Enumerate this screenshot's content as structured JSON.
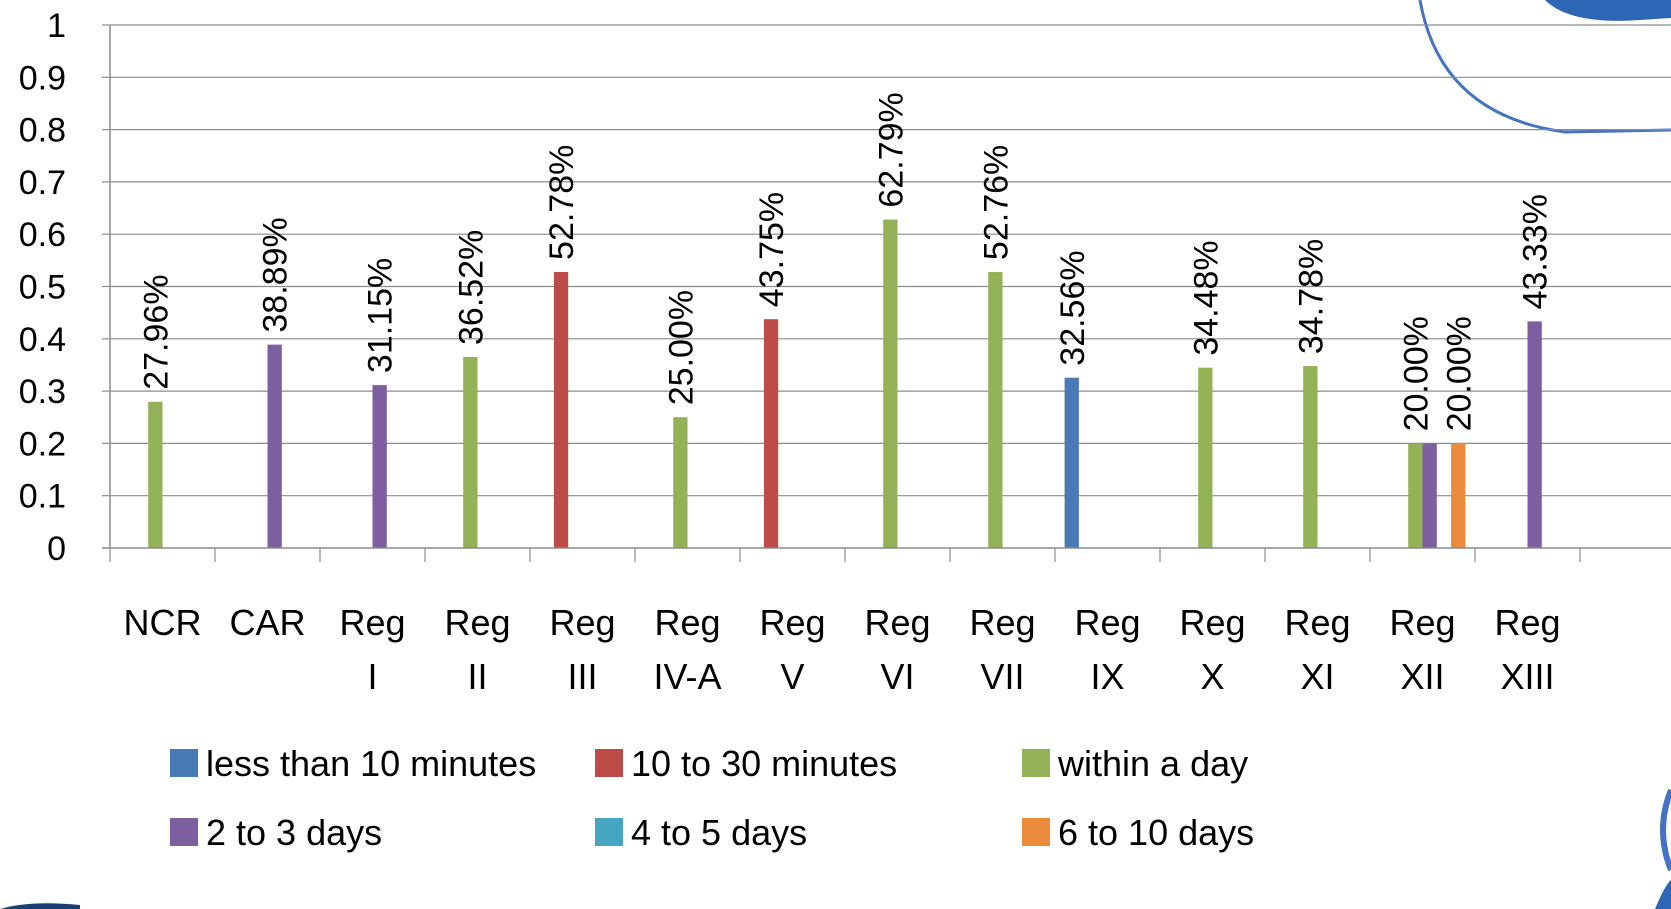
{
  "chart_data": {
    "type": "bar",
    "title": "",
    "xlabel": "",
    "ylabel": "",
    "ylim": [
      0,
      1
    ],
    "yticks": [
      "0",
      "0.1",
      "0.2",
      "0.3",
      "0.4",
      "0.5",
      "0.6",
      "0.7",
      "0.8",
      "0.9",
      "1"
    ],
    "grid": true,
    "legend_position": "bottom",
    "categories": [
      [
        "NCR"
      ],
      [
        "CAR"
      ],
      [
        "Reg",
        "I"
      ],
      [
        "Reg",
        "II"
      ],
      [
        "Reg",
        "III"
      ],
      [
        "Reg",
        "IV-A"
      ],
      [
        "Reg",
        "V"
      ],
      [
        "Reg",
        "VI"
      ],
      [
        "Reg",
        "VII"
      ],
      [
        "Reg",
        "IX"
      ],
      [
        "Reg",
        "X"
      ],
      [
        "Reg",
        "XI"
      ],
      [
        "Reg",
        "XII"
      ],
      [
        "Reg",
        "XIII"
      ]
    ],
    "series": [
      {
        "name": "less than 10 minutes",
        "color": "#4a7ab5",
        "values": [
          null,
          null,
          null,
          null,
          null,
          null,
          null,
          null,
          null,
          0.3256,
          null,
          null,
          null,
          null
        ],
        "labels": [
          null,
          null,
          null,
          null,
          null,
          null,
          null,
          null,
          null,
          "32.56%",
          null,
          null,
          null,
          null
        ]
      },
      {
        "name": "10 to 30 minutes",
        "color": "#bd4b48",
        "values": [
          null,
          null,
          null,
          null,
          0.5278,
          null,
          0.4375,
          null,
          null,
          null,
          null,
          null,
          null,
          null
        ],
        "labels": [
          null,
          null,
          null,
          null,
          "52.78%",
          null,
          "43.75%",
          null,
          null,
          null,
          null,
          null,
          null,
          null
        ]
      },
      {
        "name": "within a day",
        "color": "#93b157",
        "values": [
          0.2796,
          null,
          null,
          0.3652,
          null,
          0.25,
          null,
          0.6279,
          0.5276,
          null,
          0.3448,
          0.3478,
          0.2,
          null
        ],
        "labels": [
          "27.96%",
          null,
          null,
          "36.52%",
          null,
          "25.00%",
          null,
          "62.79%",
          "52.76%",
          null,
          "34.48%",
          "34.78%",
          "20.00%",
          null
        ]
      },
      {
        "name": "2 to 3 days",
        "color": "#7d5fa0",
        "values": [
          null,
          0.3889,
          0.3115,
          null,
          null,
          null,
          null,
          null,
          null,
          null,
          null,
          null,
          0.2,
          0.4333
        ],
        "labels": [
          null,
          "38.89%",
          "31.15%",
          null,
          null,
          null,
          null,
          null,
          null,
          null,
          null,
          null,
          null,
          "43.33%"
        ]
      },
      {
        "name": "4 to 5 days",
        "color": "#46a5c1",
        "values": [
          null,
          null,
          null,
          null,
          null,
          null,
          null,
          null,
          null,
          null,
          null,
          null,
          null,
          null
        ],
        "labels": [
          null,
          null,
          null,
          null,
          null,
          null,
          null,
          null,
          null,
          null,
          null,
          null,
          null,
          null
        ]
      },
      {
        "name": "6 to 10 days",
        "color": "#ea8b3b",
        "values": [
          null,
          null,
          null,
          null,
          null,
          null,
          null,
          null,
          null,
          null,
          null,
          null,
          0.2,
          null
        ],
        "labels": [
          null,
          null,
          null,
          null,
          null,
          null,
          null,
          null,
          null,
          null,
          null,
          null,
          "20.00%",
          null
        ]
      }
    ]
  }
}
